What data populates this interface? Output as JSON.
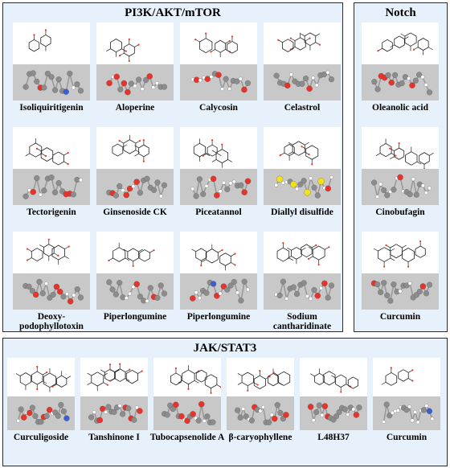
{
  "panels": {
    "pi3k": {
      "title": "PI3K/AKT/mTOR",
      "items": [
        {
          "label": "Isoliquiritigenin"
        },
        {
          "label": "Aloperine"
        },
        {
          "label": "Calycosin"
        },
        {
          "label": "Celastrol"
        },
        {
          "label": "Tectorigenin"
        },
        {
          "label": "Ginsenoside CK"
        },
        {
          "label": "Piceatannol"
        },
        {
          "label": "Diallyl disulfide"
        },
        {
          "label": "Deoxy-\npodophyllotoxin"
        },
        {
          "label": "Piperlongumine"
        },
        {
          "label": "Piperlongumine"
        },
        {
          "label": "Sodium\ncantharidinate"
        }
      ]
    },
    "notch": {
      "title": "Notch",
      "items": [
        {
          "label": "Oleanolic acid"
        },
        {
          "label": "Cinobufagin"
        },
        {
          "label": "Curcumin"
        }
      ]
    },
    "jak": {
      "title": "JAK/STAT3",
      "items": [
        {
          "label": "Curculigoside"
        },
        {
          "label": "Tanshinone I"
        },
        {
          "label": "Tubocapsenolide A"
        },
        {
          "label": "β-caryophyllene"
        },
        {
          "label": "L48H37"
        },
        {
          "label": "Curcumin"
        }
      ]
    }
  },
  "colors": {
    "panel_bg": "#e7f1fb",
    "model_bg": "#c8c8c8",
    "oxygen": "#e8332a",
    "carbon": "#8c8c8c",
    "hydrogen": "#ffffff",
    "nitrogen": "#3a5fd0",
    "sulfur": "#f2e21c"
  }
}
